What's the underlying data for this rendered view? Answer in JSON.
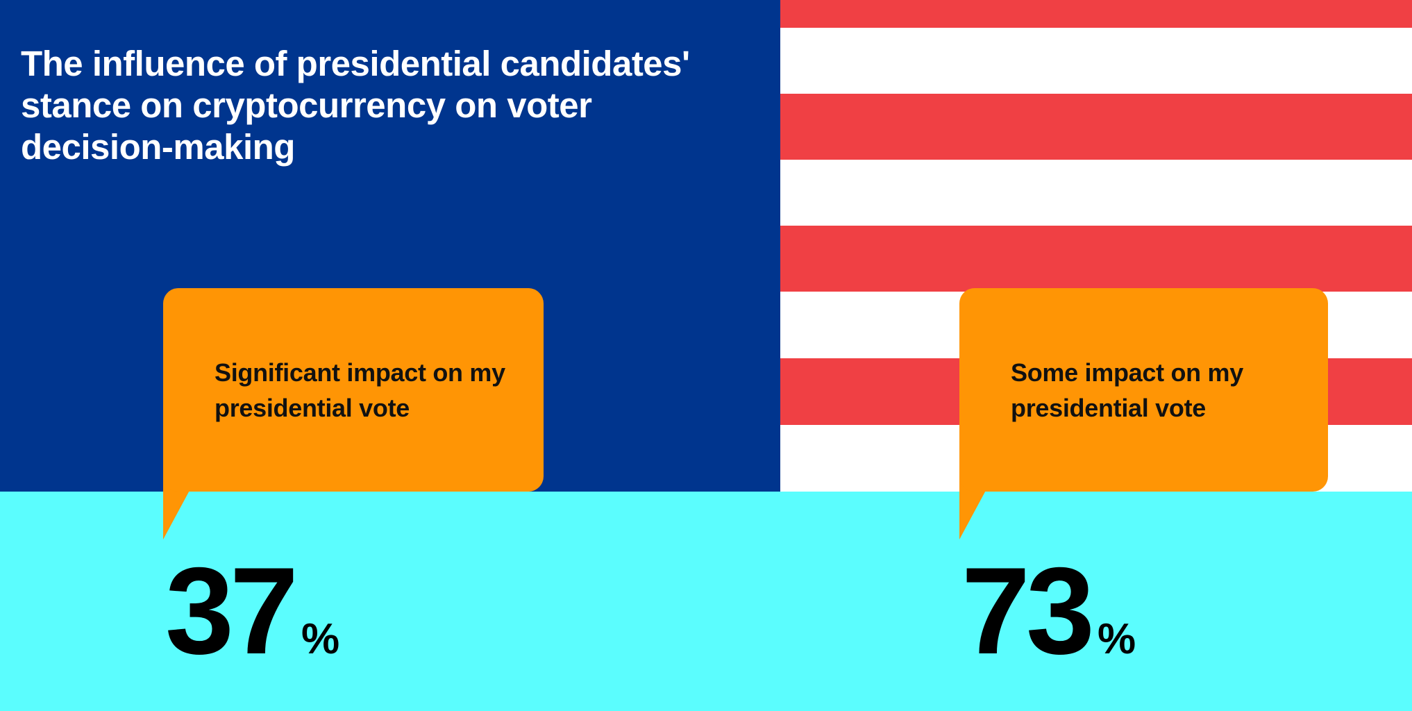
{
  "chart_data": {
    "type": "table",
    "title": "The influence of presidential candidates' stance on cryptocurrency on voter decision-making",
    "categories": [
      "Significant impact on my presidential vote",
      "Some impact on my presidential vote"
    ],
    "values": [
      37,
      73
    ],
    "unit": "%",
    "items": [
      {
        "label": "Significant impact on my presidential vote",
        "value": "37",
        "unit": "%"
      },
      {
        "label": "Some impact on my presidential vote",
        "value": "73",
        "unit": "%"
      }
    ]
  },
  "colors": {
    "navy_panel": "#00358e",
    "flag_red": "#f04044",
    "flag_white": "#ffffff",
    "cyan_band": "#5bfdfe",
    "callout_orange": "#ff9505",
    "title_text": "#ffffff",
    "stat_text": "#000000"
  },
  "flag": {
    "red_stripe_count": 4,
    "white_stripe_count": 4
  }
}
